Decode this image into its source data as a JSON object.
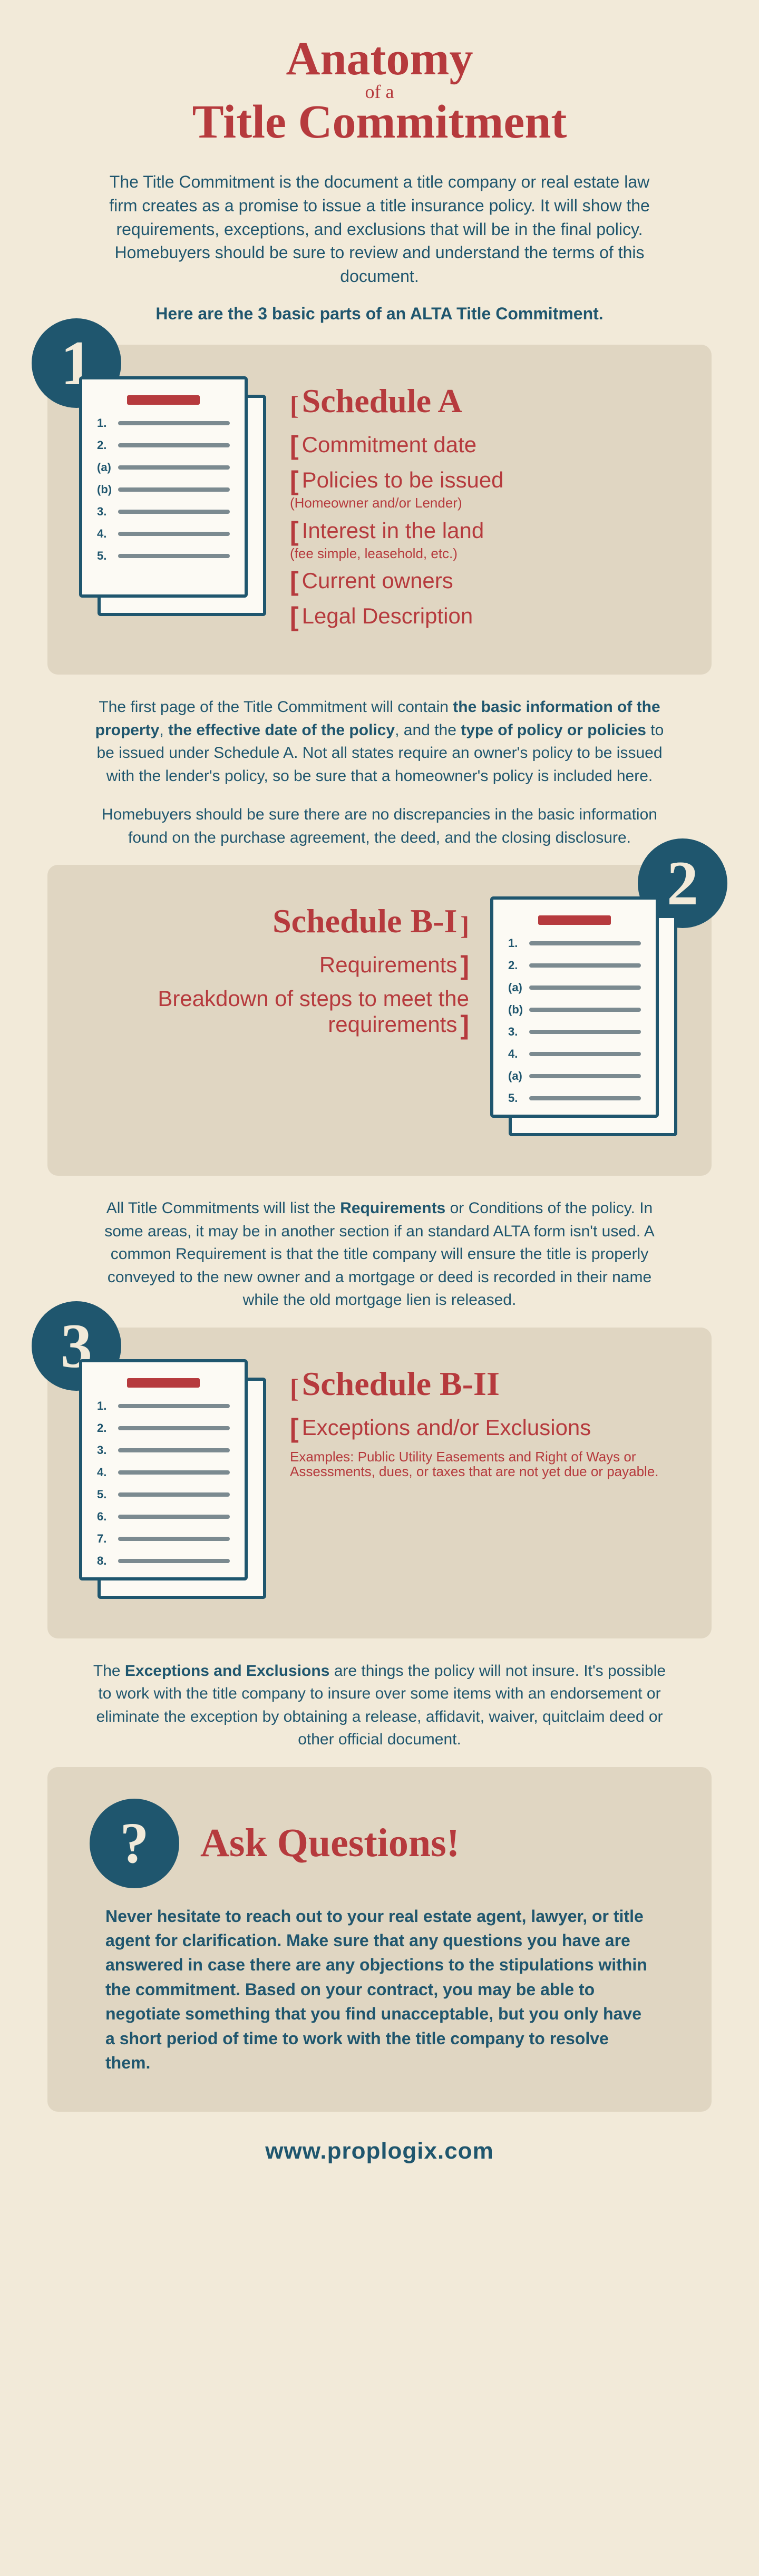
{
  "colors": {
    "red": "#b63a3d",
    "navy": "#1f566e",
    "cream": "#f2ead9",
    "panel": "#e0d6c2",
    "paper": "#fcfaf4",
    "gray_line": "#7b8a90"
  },
  "title": {
    "line1": "Anatomy",
    "of": "of a",
    "line2": "Title Commitment"
  },
  "intro": "The Title Commitment is the document a title company or real estate law firm creates as a promise to issue a title insurance policy. It will show the requirements, exceptions, and exclusions that will be in the final policy. Homebuyers should be sure to review and understand the terms of this document.",
  "intro_lead": "Here are the 3 basic parts of an ALTA Title Commitment.",
  "sections": [
    {
      "num": "1",
      "num_side": "left",
      "heading": "Schedule A",
      "doc_markers": [
        "1.",
        "2.",
        "(a)",
        "(b)",
        "3.",
        "4.",
        "5."
      ],
      "labels": [
        {
          "text": "Commitment date"
        },
        {
          "text": "Policies to be issued",
          "sub": "(Homeowner and/or Lender)"
        },
        {
          "text": "Interest in the land",
          "sub": "(fee simple, leasehold, etc.)"
        },
        {
          "text": "Current owners"
        },
        {
          "text": "Legal Description"
        }
      ],
      "body_html": "The first page of the Title Commitment will contain <b>the basic information of the property</b>, <b>the effective date of the policy</b>, and the <b>type of policy or policies</b> to be issued under Schedule A. Not all states require an owner's policy to be issued with the lender's policy, so be sure that a homeowner's policy is included here.",
      "body2": "Homebuyers should be sure there are no discrepancies in the basic information found on the purchase agreement, the deed, and the closing disclosure."
    },
    {
      "num": "2",
      "num_side": "right",
      "heading": "Schedule B-I",
      "doc_markers": [
        "1.",
        "2.",
        "(a)",
        "(b)",
        "3.",
        "4.",
        "(a)",
        "5."
      ],
      "labels": [
        {
          "text": "Requirements"
        },
        {
          "text": "Breakdown of steps to meet the requirements"
        }
      ],
      "body_html": "All Title Commitments will list the <b>Requirements</b> or Conditions of the policy. In some areas, it may be in another section if an standard ALTA form isn't used. A common Requirement is that the title company will ensure the title is properly conveyed to the new owner and a mortgage or deed is recorded in their name while the old mortgage lien is released."
    },
    {
      "num": "3",
      "num_side": "left",
      "heading": "Schedule B-II",
      "doc_markers": [
        "1.",
        "2.",
        "3.",
        "4.",
        "5.",
        "6.",
        "7.",
        "8."
      ],
      "labels": [
        {
          "text": "Exceptions and/or Exclusions"
        },
        {
          "sub_only": "Examples: Public Utility Easements and Right of Ways or Assessments, dues, or taxes that are not yet due or payable."
        }
      ],
      "body_html": "The <b>Exceptions and Exclusions</b> are things the policy will not insure. It's possible to work with the title company to insure over some items with an endorsement or eliminate the exception by obtaining a release, affidavit, waiver, quitclaim deed or other official document."
    }
  ],
  "ask": {
    "symbol": "?",
    "title": "Ask Questions!",
    "body": "Never hesitate to reach out to your real estate agent, lawyer, or title agent for clarification. Make sure that any questions you have are answered in case there are any objections to the stipulations within the commitment. Based on your contract, you may be able to negotiate something that you find unacceptable, but you only have a short period of time to work with the title company to resolve them."
  },
  "footer": "www.proplogix.com"
}
